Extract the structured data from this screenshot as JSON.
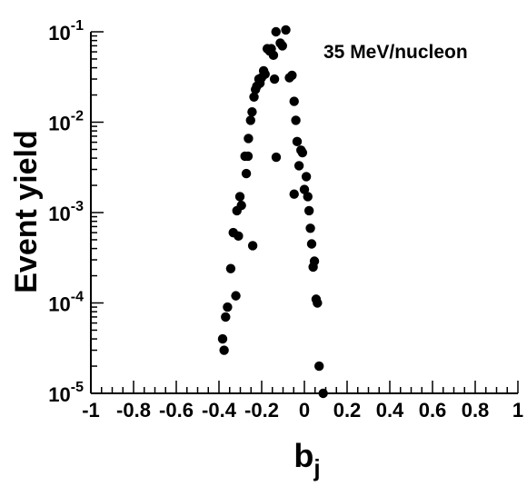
{
  "chart_data": {
    "type": "scatter",
    "xlabel": "b",
    "xlabel_subscript": "j",
    "ylabel": "Event yield",
    "annotation": "35 MeV/nucleon",
    "xlim": [
      -1,
      1
    ],
    "ylim": [
      1e-05,
      0.1
    ],
    "yscale": "log",
    "grid": false,
    "x_ticks": [
      {
        "value": -1,
        "label": "-1"
      },
      {
        "value": -0.8,
        "label": "-0.8"
      },
      {
        "value": -0.6,
        "label": "-0.6"
      },
      {
        "value": -0.4,
        "label": "-0.4"
      },
      {
        "value": -0.2,
        "label": "-0.2"
      },
      {
        "value": 0,
        "label": "0"
      },
      {
        "value": 0.2,
        "label": "0.2"
      },
      {
        "value": 0.4,
        "label": "0.4"
      },
      {
        "value": 0.6,
        "label": "0.6"
      },
      {
        "value": 0.8,
        "label": "0.8"
      },
      {
        "value": 1,
        "label": "1"
      }
    ],
    "y_ticks": [
      {
        "value": 1e-05,
        "base": "10",
        "exp": "-5"
      },
      {
        "value": 0.0001,
        "base": "10",
        "exp": "-4"
      },
      {
        "value": 0.001,
        "base": "10",
        "exp": "-3"
      },
      {
        "value": 0.01,
        "base": "10",
        "exp": "-2"
      },
      {
        "value": 0.1,
        "base": "10",
        "exp": "-1"
      }
    ],
    "points": [
      {
        "x": -0.383,
        "y": 4e-05
      },
      {
        "x": -0.376,
        "y": 3e-05
      },
      {
        "x": -0.369,
        "y": 7e-05
      },
      {
        "x": -0.36,
        "y": 9e-05
      },
      {
        "x": -0.345,
        "y": 0.00024
      },
      {
        "x": -0.333,
        "y": 0.0006
      },
      {
        "x": -0.321,
        "y": 0.00012
      },
      {
        "x": -0.316,
        "y": 0.00105
      },
      {
        "x": -0.309,
        "y": 0.00055
      },
      {
        "x": -0.302,
        "y": 0.0015
      },
      {
        "x": -0.295,
        "y": 0.0012
      },
      {
        "x": -0.278,
        "y": 0.0042
      },
      {
        "x": -0.264,
        "y": 0.0042
      },
      {
        "x": -0.272,
        "y": 0.0027
      },
      {
        "x": -0.262,
        "y": 0.0066
      },
      {
        "x": -0.252,
        "y": 0.0105
      },
      {
        "x": -0.245,
        "y": 0.013
      },
      {
        "x": -0.236,
        "y": 0.019
      },
      {
        "x": -0.229,
        "y": 0.023
      },
      {
        "x": -0.223,
        "y": 0.025
      },
      {
        "x": -0.213,
        "y": 0.03
      },
      {
        "x": -0.208,
        "y": 0.027
      },
      {
        "x": -0.201,
        "y": 0.031
      },
      {
        "x": -0.191,
        "y": 0.037
      },
      {
        "x": -0.184,
        "y": 0.034
      },
      {
        "x": -0.174,
        "y": 0.065
      },
      {
        "x": -0.162,
        "y": 0.061
      },
      {
        "x": -0.155,
        "y": 0.065
      },
      {
        "x": -0.145,
        "y": 0.055
      },
      {
        "x": -0.14,
        "y": 0.03
      },
      {
        "x": -0.133,
        "y": 0.1
      },
      {
        "x": -0.113,
        "y": 0.075
      },
      {
        "x": -0.103,
        "y": 0.07
      },
      {
        "x": -0.242,
        "y": 0.00043
      },
      {
        "x": -0.132,
        "y": 0.0041
      },
      {
        "x": -0.087,
        "y": 0.105
      },
      {
        "x": -0.07,
        "y": 0.031
      },
      {
        "x": -0.058,
        "y": 0.033
      },
      {
        "x": -0.048,
        "y": 0.017
      },
      {
        "x": -0.04,
        "y": 0.0105
      },
      {
        "x": -0.034,
        "y": 0.0061
      },
      {
        "x": -0.025,
        "y": 0.0033
      },
      {
        "x": -0.016,
        "y": 0.0049
      },
      {
        "x": -0.009,
        "y": 0.0046
      },
      {
        "x": 0.0,
        "y": 0.0018
      },
      {
        "x": 0.009,
        "y": 0.0025
      },
      {
        "x": 0.016,
        "y": 0.0015
      },
      {
        "x": 0.022,
        "y": 0.00105
      },
      {
        "x": 0.028,
        "y": 0.00067
      },
      {
        "x": 0.034,
        "y": 0.00045
      },
      {
        "x": 0.041,
        "y": 0.00025
      },
      {
        "x": 0.047,
        "y": 0.00029
      },
      {
        "x": 0.055,
        "y": 0.00011
      },
      {
        "x": 0.061,
        "y": 0.0001
      },
      {
        "x": -0.048,
        "y": 0.0016
      },
      {
        "x": 0.069,
        "y": 2e-05
      },
      {
        "x": 0.088,
        "y": 1e-05
      }
    ]
  }
}
